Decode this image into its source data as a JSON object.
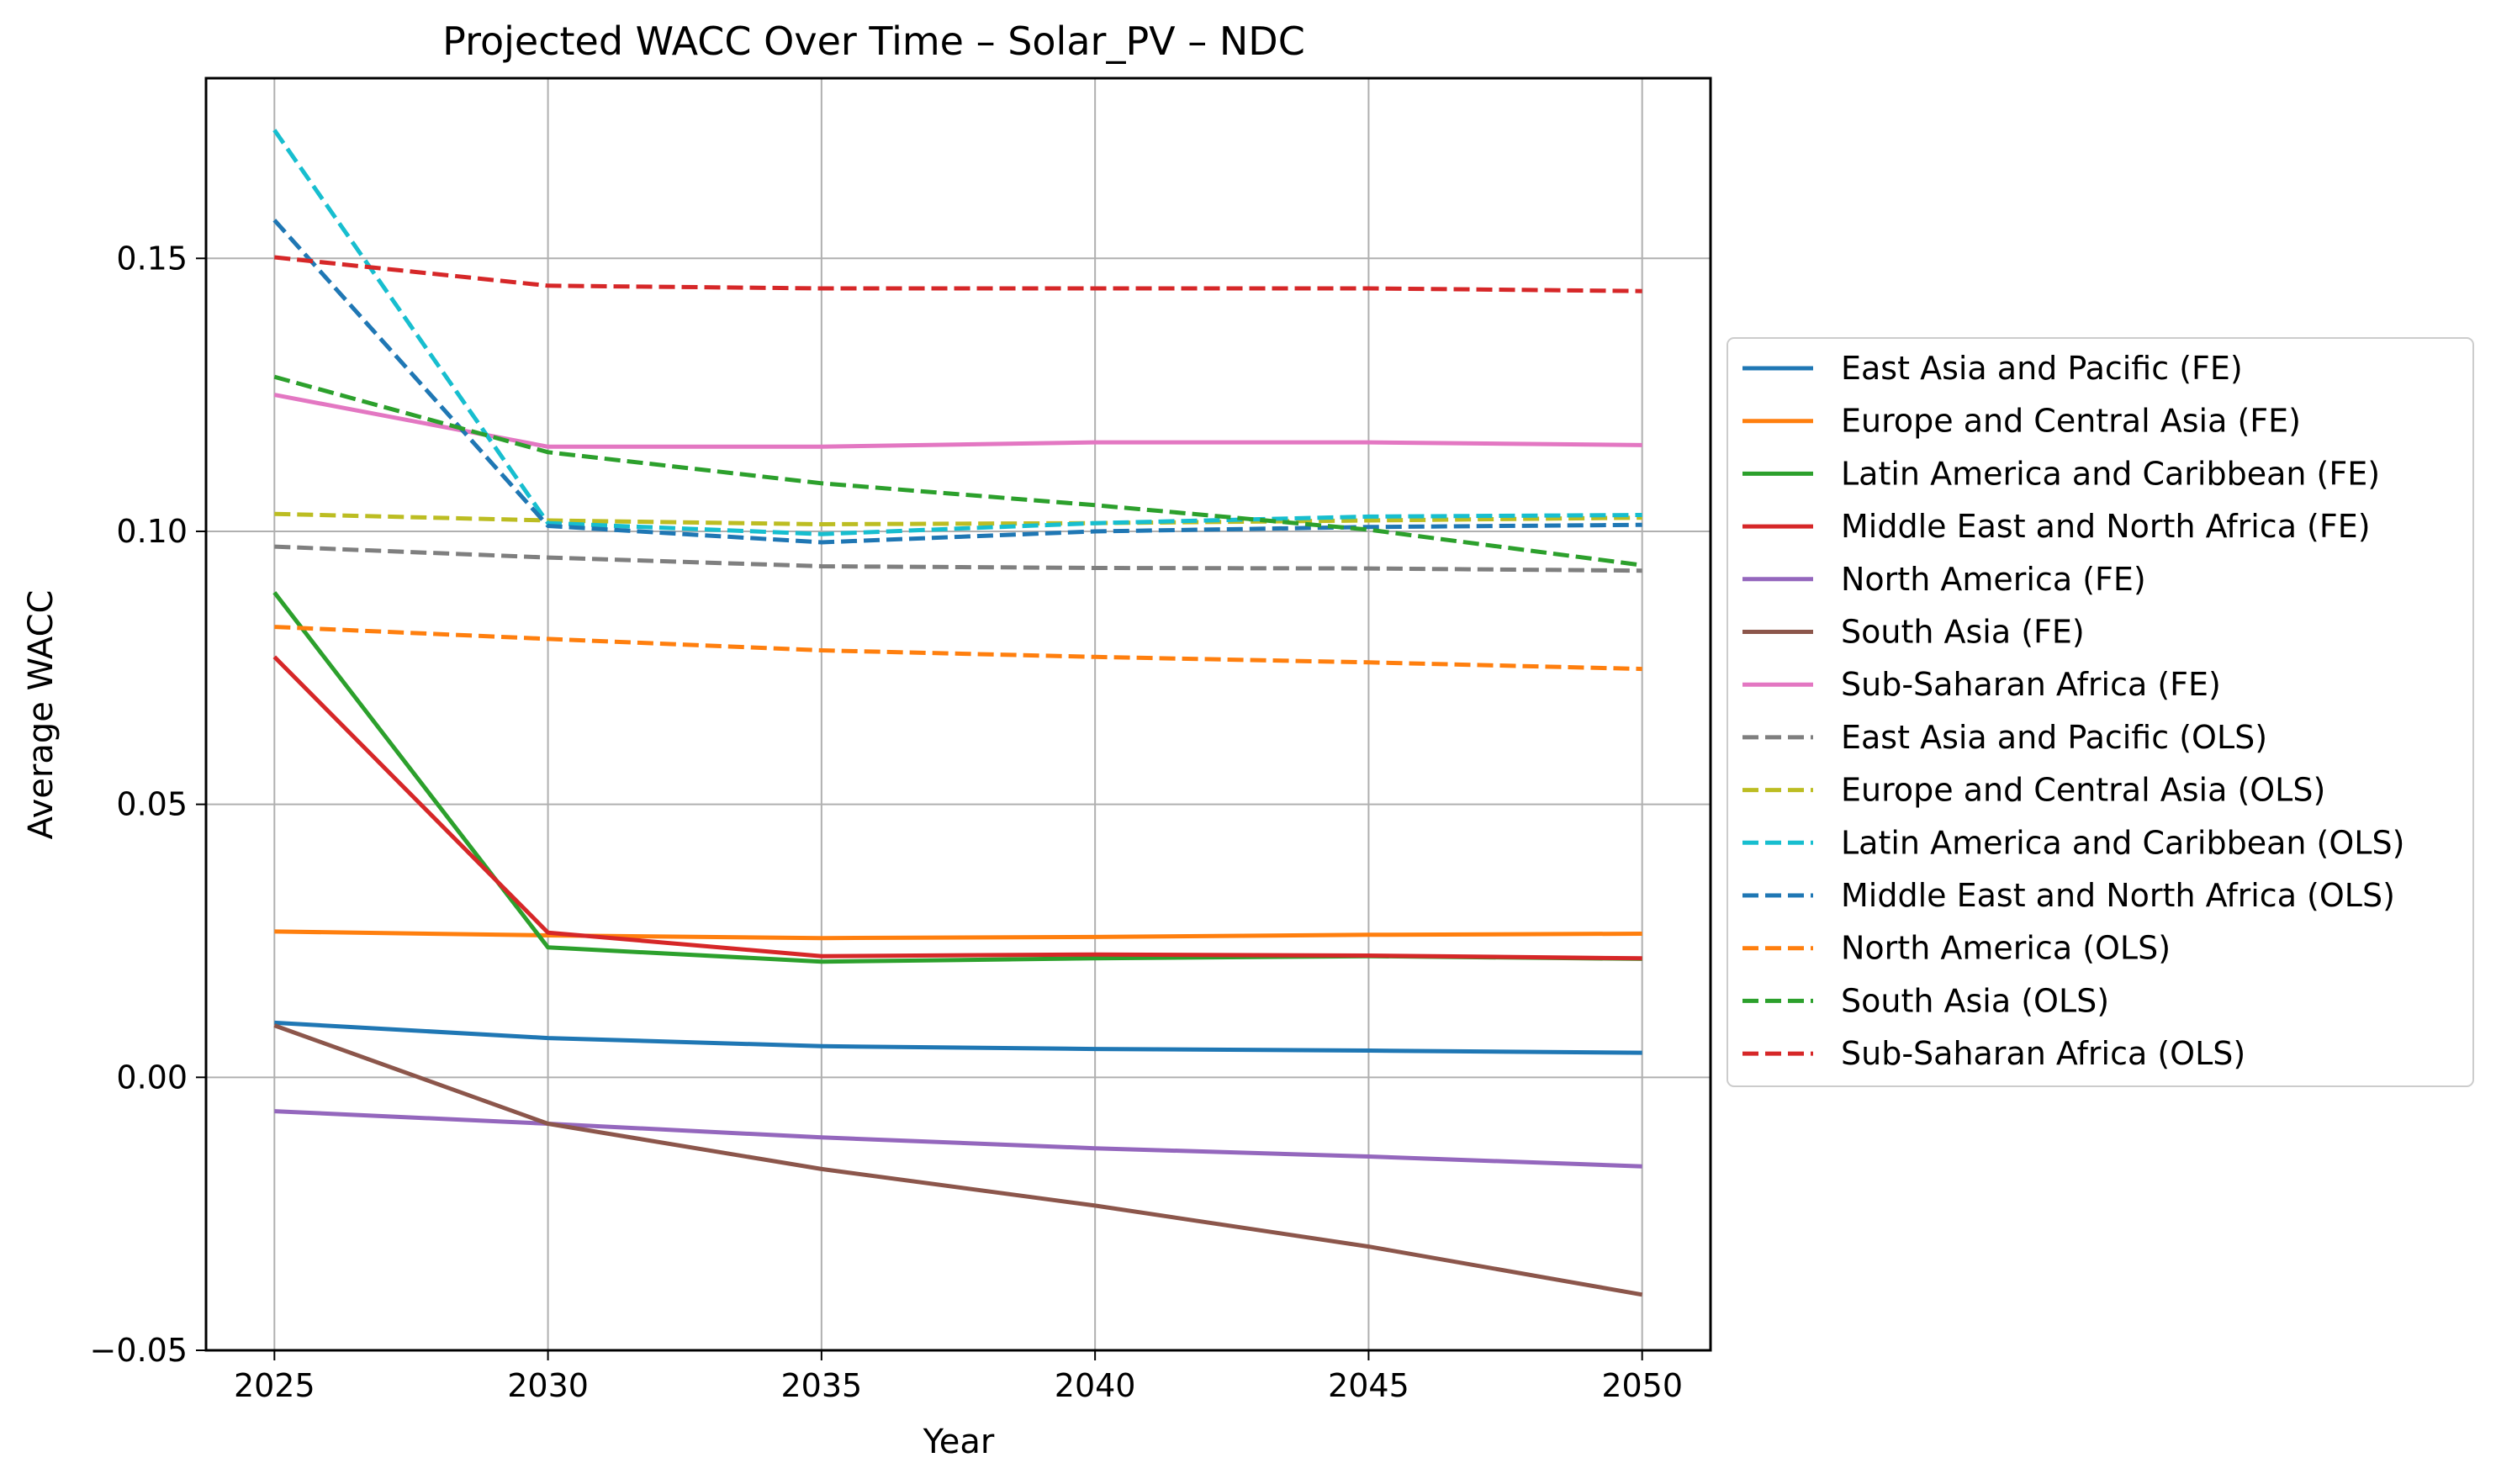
{
  "chart_data": {
    "type": "line",
    "title": "Projected WACC Over Time – Solar_PV – NDC",
    "xlabel": "Year",
    "ylabel": "Average WACC",
    "x": [
      2025,
      2030,
      2035,
      2040,
      2045,
      2050
    ],
    "xticks": [
      "2025",
      "2030",
      "2035",
      "2040",
      "2045",
      "2050"
    ],
    "yticks": [
      -0.05,
      0.0,
      0.05,
      0.1,
      0.15
    ],
    "ytick_labels": [
      "−0.05",
      "0.00",
      "0.05",
      "0.10",
      "0.15"
    ],
    "xlim": [
      2023.75,
      2051.25
    ],
    "ylim": [
      -0.05,
      0.183
    ],
    "grid": true,
    "legend_position": "center-right-outside",
    "series": [
      {
        "name": "East Asia and Pacific (FE)",
        "color": "#1f77b4",
        "dash": "solid",
        "values": [
          0.01,
          0.0072,
          0.0057,
          0.0052,
          0.0049,
          0.0045
        ]
      },
      {
        "name": "Europe and Central Asia (FE)",
        "color": "#ff7f0e",
        "dash": "solid",
        "values": [
          0.0267,
          0.026,
          0.0255,
          0.0257,
          0.0261,
          0.0263
        ]
      },
      {
        "name": "Latin America and Caribbean (FE)",
        "color": "#2ca02c",
        "dash": "solid",
        "values": [
          0.0888,
          0.0238,
          0.0212,
          0.0218,
          0.0222,
          0.0217
        ]
      },
      {
        "name": "Middle East and North Africa (FE)",
        "color": "#d62728",
        "dash": "solid",
        "values": [
          0.077,
          0.0265,
          0.0222,
          0.0225,
          0.0223,
          0.0218
        ]
      },
      {
        "name": "North America (FE)",
        "color": "#9467bd",
        "dash": "solid",
        "values": [
          -0.0062,
          -0.0085,
          -0.011,
          -0.013,
          -0.0145,
          -0.0163
        ]
      },
      {
        "name": "South Asia (FE)",
        "color": "#8c564b",
        "dash": "solid",
        "values": [
          0.0095,
          -0.0085,
          -0.0168,
          -0.0235,
          -0.031,
          -0.0398
        ]
      },
      {
        "name": "Sub-Saharan Africa (FE)",
        "color": "#e377c2",
        "dash": "solid",
        "values": [
          0.125,
          0.1155,
          0.1155,
          0.1163,
          0.1163,
          0.1158
        ]
      },
      {
        "name": "East Asia and Pacific (OLS)",
        "color": "#7f7f7f",
        "dash": "dashed",
        "values": [
          0.0972,
          0.0952,
          0.0936,
          0.0933,
          0.0932,
          0.0928
        ]
      },
      {
        "name": "Europe and Central Asia (OLS)",
        "color": "#bcbd22",
        "dash": "dashed",
        "values": [
          0.1032,
          0.102,
          0.1013,
          0.1015,
          0.102,
          0.1025
        ]
      },
      {
        "name": "Latin America and Caribbean (OLS)",
        "color": "#17becf",
        "dash": "dashed",
        "values": [
          0.1735,
          0.1015,
          0.0995,
          0.1015,
          0.1027,
          0.103
        ]
      },
      {
        "name": "Middle East and North Africa (OLS)",
        "color": "#1f77b4",
        "dash": "dashed",
        "values": [
          0.157,
          0.101,
          0.098,
          0.1,
          0.1008,
          0.1012
        ]
      },
      {
        "name": "North America (OLS)",
        "color": "#ff7f0e",
        "dash": "dashed",
        "values": [
          0.0825,
          0.0803,
          0.0782,
          0.077,
          0.076,
          0.0748
        ]
      },
      {
        "name": "South Asia (OLS)",
        "color": "#2ca02c",
        "dash": "dashed",
        "values": [
          0.1283,
          0.1145,
          0.1088,
          0.1048,
          0.1003,
          0.0938
        ]
      },
      {
        "name": "Sub-Saharan Africa (OLS)",
        "color": "#d62728",
        "dash": "dashed",
        "values": [
          0.1502,
          0.145,
          0.1445,
          0.1445,
          0.1445,
          0.144
        ]
      }
    ]
  }
}
